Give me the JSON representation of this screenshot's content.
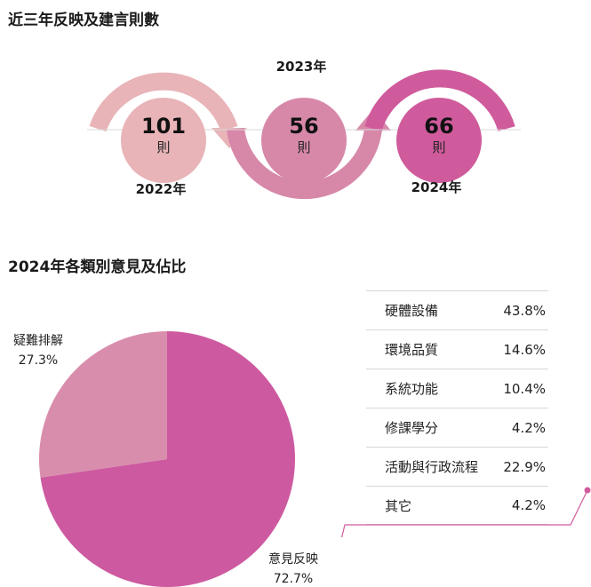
{
  "headings": {
    "trend": "近三年反映及建言則數",
    "categories": "2024年各類別意見及佔比"
  },
  "colors": {
    "y2022": "#e8b4b8",
    "y2023": "#d788a9",
    "y2024": "#cf5b9c",
    "pie_major": "#cd5aa0",
    "pie_minor": "#d98dad"
  },
  "chart_data": [
    {
      "type": "table",
      "title": "近三年反映及建言則數",
      "unit": "則",
      "categories": [
        "2022年",
        "2023年",
        "2024年"
      ],
      "values": [
        101,
        56,
        66
      ]
    },
    {
      "type": "pie",
      "title": "2024年各類別意見及佔比",
      "slices": [
        {
          "label": "意見反映",
          "value": 72.7,
          "text": "72.7%"
        },
        {
          "label": "疑難排解",
          "value": 27.3,
          "text": "27.3%"
        }
      ]
    },
    {
      "type": "table",
      "categories": [
        "硬體設備",
        "環境品質",
        "系統功能",
        "修課學分",
        "活動與行政流程",
        "其它"
      ],
      "values": [
        "43.8%",
        "14.6%",
        "10.4%",
        "4.2%",
        "22.9%",
        "4.2%"
      ]
    }
  ]
}
